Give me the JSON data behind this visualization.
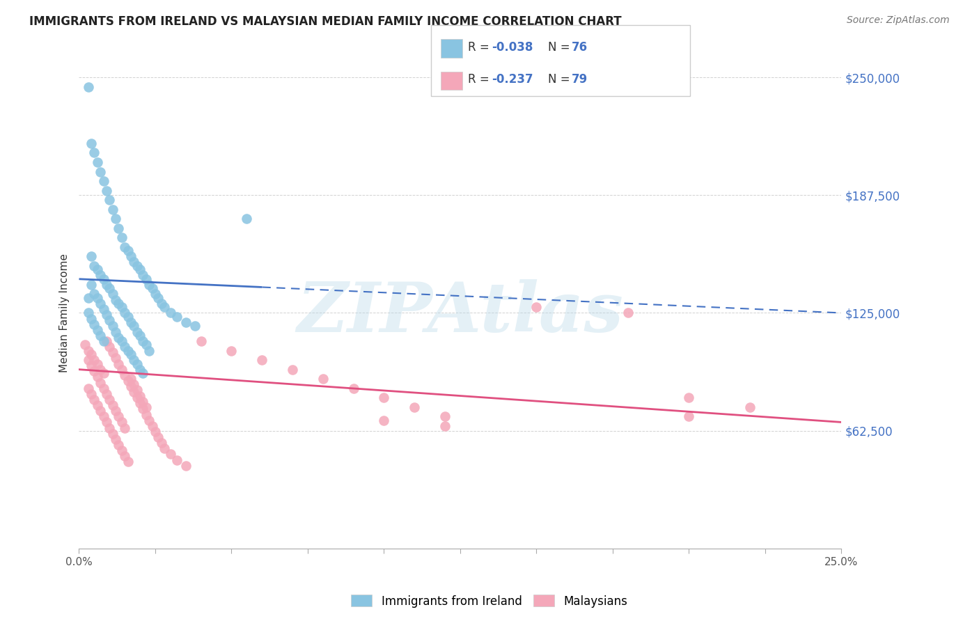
{
  "title": "IMMIGRANTS FROM IRELAND VS MALAYSIAN MEDIAN FAMILY INCOME CORRELATION CHART",
  "source": "Source: ZipAtlas.com",
  "ylabel": "Median Family Income",
  "yticks": [
    0,
    62500,
    125000,
    187500,
    250000
  ],
  "ytick_labels": [
    "",
    "$62,500",
    "$125,000",
    "$187,500",
    "$250,000"
  ],
  "xmin": 0.0,
  "xmax": 0.25,
  "ymin": 0,
  "ymax": 250000,
  "ireland_color": "#89c4e1",
  "malaysian_color": "#f4a7b9",
  "ireland_line_color": "#4472c4",
  "malaysian_line_color": "#e05080",
  "legend_label_ireland": "Immigrants from Ireland",
  "legend_label_malaysian": "Malaysians",
  "watermark": "ZIPAtlas",
  "ireland_line_x0": 0.0,
  "ireland_line_y0": 143000,
  "ireland_line_x1": 0.25,
  "ireland_line_y1": 125000,
  "ireland_line_solid_end": 0.06,
  "malaysian_line_x0": 0.0,
  "malaysian_line_y0": 95000,
  "malaysian_line_x1": 0.25,
  "malaysian_line_y1": 67000,
  "ireland_scatter_x": [
    0.003,
    0.004,
    0.005,
    0.006,
    0.007,
    0.008,
    0.009,
    0.01,
    0.011,
    0.012,
    0.013,
    0.014,
    0.015,
    0.016,
    0.017,
    0.018,
    0.019,
    0.02,
    0.021,
    0.022,
    0.023,
    0.024,
    0.025,
    0.026,
    0.027,
    0.028,
    0.03,
    0.032,
    0.035,
    0.038,
    0.004,
    0.005,
    0.006,
    0.007,
    0.008,
    0.009,
    0.01,
    0.011,
    0.012,
    0.013,
    0.014,
    0.015,
    0.016,
    0.017,
    0.018,
    0.019,
    0.02,
    0.021,
    0.022,
    0.023,
    0.004,
    0.005,
    0.006,
    0.007,
    0.008,
    0.009,
    0.01,
    0.011,
    0.012,
    0.013,
    0.014,
    0.015,
    0.016,
    0.017,
    0.018,
    0.019,
    0.02,
    0.021,
    0.003,
    0.055,
    0.003,
    0.004,
    0.005,
    0.006,
    0.007,
    0.008
  ],
  "ireland_scatter_y": [
    245000,
    215000,
    210000,
    205000,
    200000,
    195000,
    190000,
    185000,
    180000,
    175000,
    170000,
    165000,
    160000,
    158000,
    155000,
    152000,
    150000,
    148000,
    145000,
    143000,
    140000,
    138000,
    135000,
    133000,
    130000,
    128000,
    125000,
    123000,
    120000,
    118000,
    155000,
    150000,
    148000,
    145000,
    143000,
    140000,
    138000,
    135000,
    132000,
    130000,
    128000,
    125000,
    123000,
    120000,
    118000,
    115000,
    113000,
    110000,
    108000,
    105000,
    140000,
    135000,
    133000,
    130000,
    127000,
    124000,
    121000,
    118000,
    115000,
    112000,
    110000,
    107000,
    105000,
    103000,
    100000,
    98000,
    95000,
    93000,
    133000,
    175000,
    125000,
    122000,
    119000,
    116000,
    113000,
    110000
  ],
  "malaysian_scatter_x": [
    0.002,
    0.003,
    0.004,
    0.005,
    0.006,
    0.007,
    0.008,
    0.009,
    0.01,
    0.011,
    0.012,
    0.013,
    0.014,
    0.015,
    0.016,
    0.017,
    0.018,
    0.019,
    0.02,
    0.021,
    0.022,
    0.023,
    0.024,
    0.025,
    0.026,
    0.027,
    0.028,
    0.03,
    0.032,
    0.035,
    0.003,
    0.004,
    0.005,
    0.006,
    0.007,
    0.008,
    0.009,
    0.01,
    0.011,
    0.012,
    0.013,
    0.014,
    0.015,
    0.016,
    0.017,
    0.018,
    0.019,
    0.02,
    0.021,
    0.022,
    0.003,
    0.004,
    0.005,
    0.006,
    0.007,
    0.008,
    0.009,
    0.01,
    0.011,
    0.012,
    0.013,
    0.014,
    0.015,
    0.04,
    0.05,
    0.06,
    0.07,
    0.08,
    0.09,
    0.1,
    0.11,
    0.12,
    0.15,
    0.18,
    0.2,
    0.22,
    0.1,
    0.12,
    0.2
  ],
  "malaysian_scatter_y": [
    108000,
    105000,
    103000,
    100000,
    98000,
    95000,
    93000,
    110000,
    107000,
    104000,
    101000,
    98000,
    95000,
    92000,
    89000,
    86000,
    83000,
    80000,
    77000,
    74000,
    71000,
    68000,
    65000,
    62000,
    59000,
    56000,
    53000,
    50000,
    47000,
    44000,
    85000,
    82000,
    79000,
    76000,
    73000,
    70000,
    67000,
    64000,
    61000,
    58000,
    55000,
    52000,
    49000,
    46000,
    90000,
    87000,
    84000,
    81000,
    78000,
    75000,
    100000,
    97000,
    94000,
    91000,
    88000,
    85000,
    82000,
    79000,
    76000,
    73000,
    70000,
    67000,
    64000,
    110000,
    105000,
    100000,
    95000,
    90000,
    85000,
    80000,
    75000,
    70000,
    128000,
    125000,
    80000,
    75000,
    68000,
    65000,
    70000
  ]
}
